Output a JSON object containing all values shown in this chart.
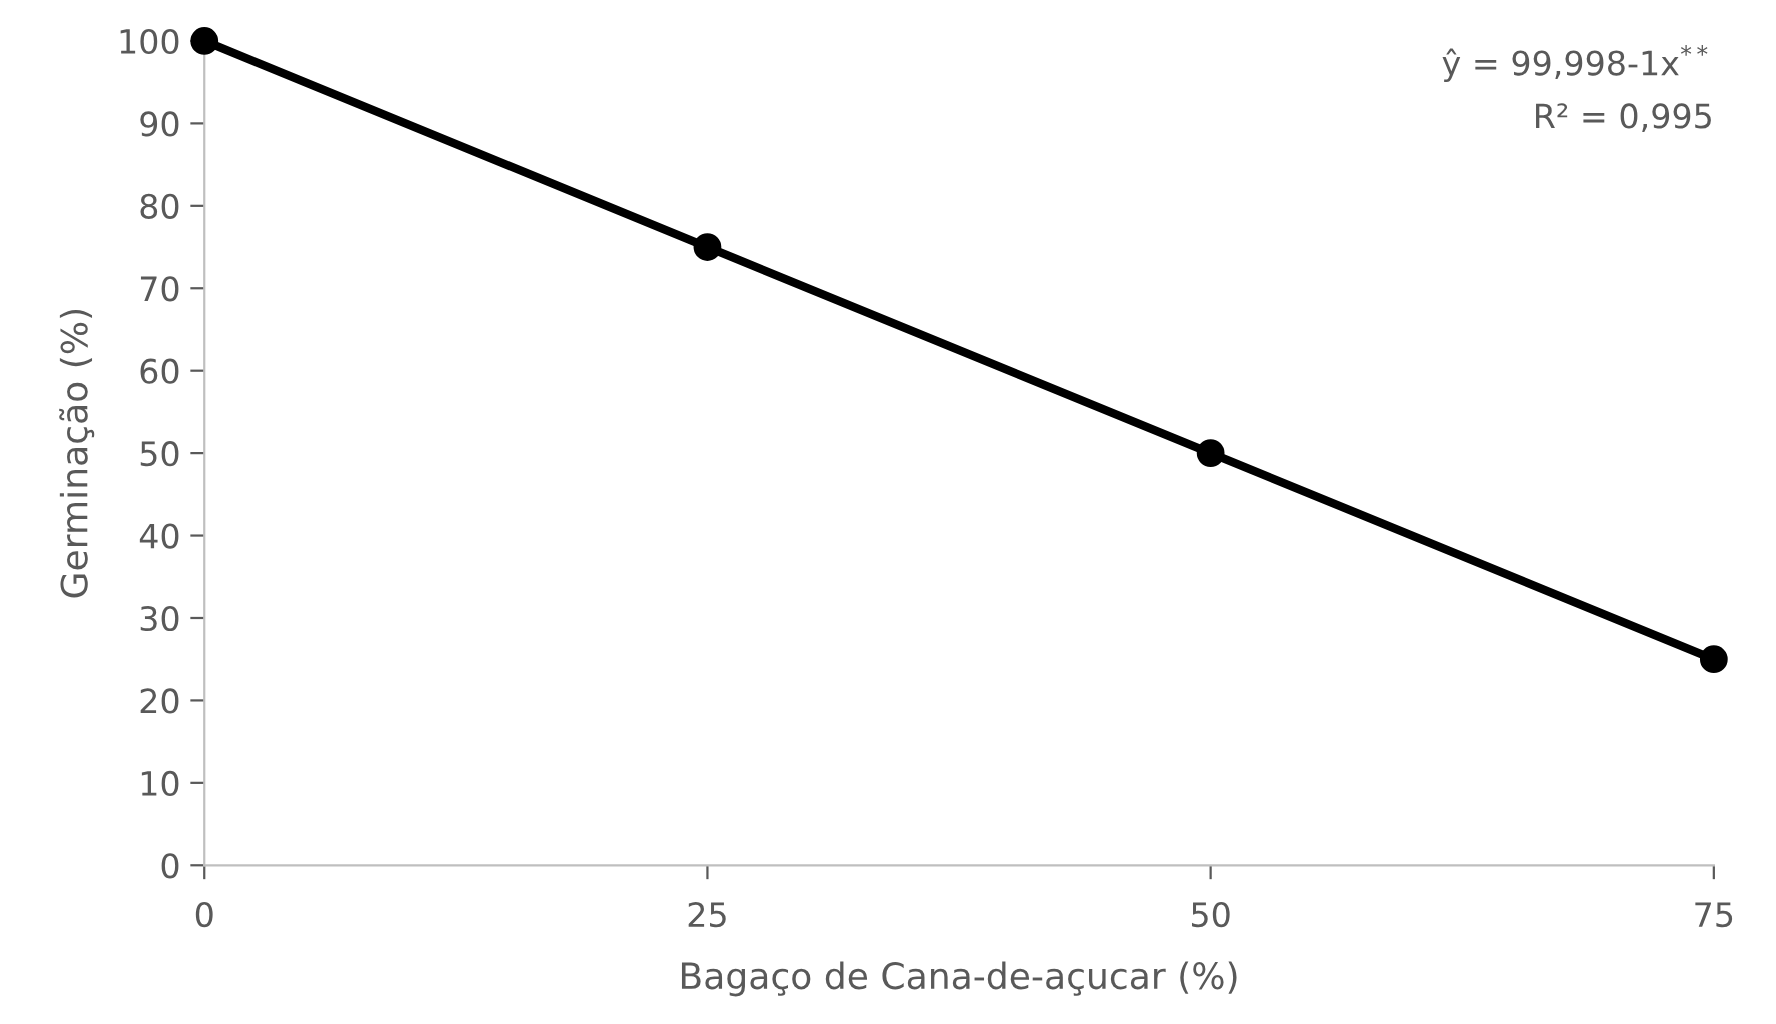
{
  "chart_data": {
    "type": "line",
    "xlabel": "Bagaço de Cana-de-açucar (%)",
    "ylabel": "Germinação (%)",
    "x": [
      0,
      25,
      50,
      75
    ],
    "series": [
      {
        "color": "#000000",
        "values": [
          100,
          75,
          50,
          25
        ]
      }
    ],
    "xlim": [
      0,
      75
    ],
    "xticks": [
      0,
      25,
      50,
      75
    ],
    "ylim": [
      0,
      100
    ],
    "yticks": [
      0,
      10,
      20,
      30,
      40,
      50,
      60,
      70,
      80,
      90,
      100
    ],
    "marker": "circle",
    "line_style": "solid",
    "grid": false,
    "annotations": [
      "ŷ = 99,998-1x$^{**}$",
      "R² = 0,995"
    ]
  }
}
